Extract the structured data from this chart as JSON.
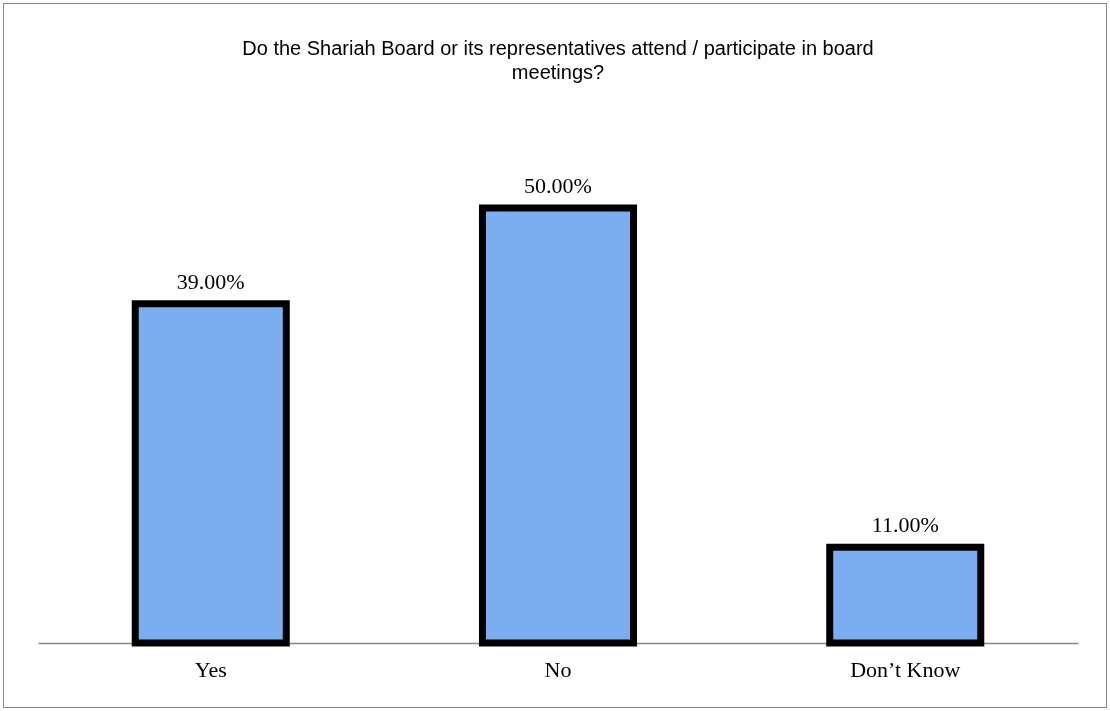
{
  "chart_data": {
    "type": "bar",
    "title": "Do the Shariah Board or its representatives attend / participate in board meetings?",
    "categories": [
      "Yes",
      "No",
      "Don’t Know"
    ],
    "values": [
      39,
      50,
      11
    ],
    "value_labels": [
      "39.00%",
      "50.00%",
      "11.00%"
    ],
    "color": "#7aaef0",
    "grid": false
  }
}
